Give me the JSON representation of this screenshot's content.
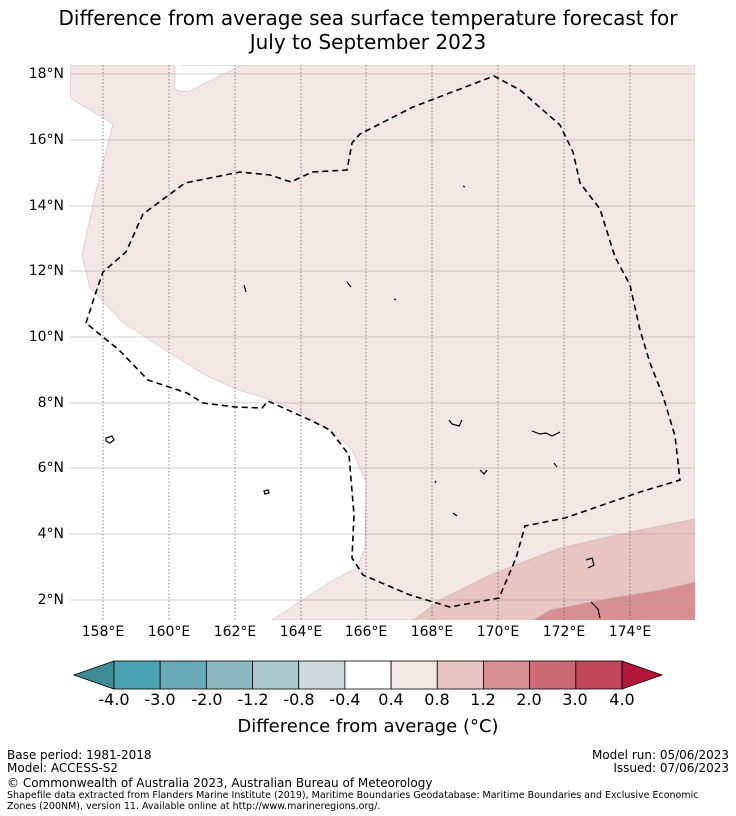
{
  "title_line1": "Difference from average sea surface temperature forecast for",
  "title_line2": "July to September 2023",
  "lat_labels": [
    "18°N",
    "16°N",
    "14°N",
    "12°N",
    "10°N",
    "8°N",
    "6°N",
    "4°N",
    "2°N"
  ],
  "lon_labels": [
    "158°E",
    "160°E",
    "162°E",
    "164°E",
    "166°E",
    "168°E",
    "170°E",
    "172°E",
    "174°E"
  ],
  "legend": {
    "title": "Difference from average (°C)",
    "tick_labels": [
      "-4.0",
      "-3.0",
      "-2.0",
      "-1.2",
      "-0.8",
      "-0.4",
      "0.4",
      "0.8",
      "1.2",
      "2.0",
      "3.0",
      "4.0"
    ],
    "colors": [
      "#4aa1b1",
      "#68a9b8",
      "#8bb8c1",
      "#a9c6cc",
      "#cdd9da",
      "#ffffff",
      "#f3e7e6",
      "#e8c5c2",
      "#d88f94",
      "#ca6a73",
      "#c1485a"
    ],
    "under_color": "#3f8c97",
    "over_color": "#b3183b"
  },
  "footer": {
    "base_period": "Base period: 1981-2018",
    "model": "Model: ACCESS-S2",
    "model_run": "Model run: 05/06/2023",
    "issued": "Issued: 07/06/2023",
    "copyright": "© Commonwealth of Australia 2023, Australian Bureau of Meteorology",
    "shapefile_note": "Shapefile data extracted from Flanders Marine Institute (2019), Maritime Boundaries Geodatabase: Maritime Boundaries and Exclusive Economic Zones (200NM), version 11. Available online at http://www.marineregions.org/."
  }
}
